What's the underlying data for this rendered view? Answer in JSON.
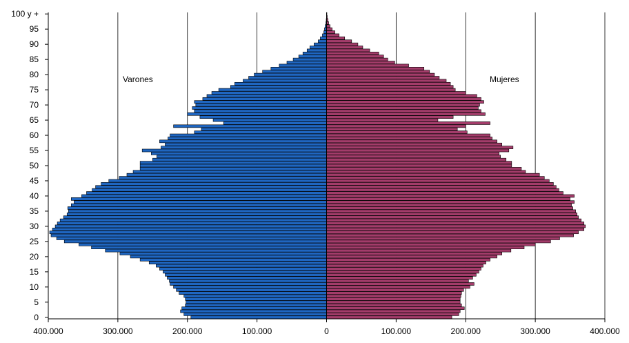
{
  "chart_data": {
    "type": "bar",
    "orientation": "horizontal",
    "layout": "population-pyramid",
    "xlim": [
      -400000,
      400000
    ],
    "x_ticks": [
      -400000,
      -300000,
      -200000,
      -100000,
      0,
      100000,
      200000,
      300000,
      400000
    ],
    "x_tick_labels": [
      "400.000",
      "300.000",
      "200.000",
      "100.000",
      "0",
      "100.000",
      "200.000",
      "300.000",
      "400.000"
    ],
    "y_categories": [
      "0",
      "1",
      "2",
      "3",
      "4",
      "5",
      "6",
      "7",
      "8",
      "9",
      "10",
      "11",
      "12",
      "13",
      "14",
      "15",
      "16",
      "17",
      "18",
      "19",
      "20",
      "21",
      "22",
      "23",
      "24",
      "25",
      "26",
      "27",
      "28",
      "29",
      "30",
      "31",
      "32",
      "33",
      "34",
      "35",
      "36",
      "37",
      "38",
      "39",
      "40",
      "41",
      "42",
      "43",
      "44",
      "45",
      "46",
      "47",
      "48",
      "49",
      "50",
      "51",
      "52",
      "53",
      "54",
      "55",
      "56",
      "57",
      "58",
      "59",
      "60",
      "61",
      "62",
      "63",
      "64",
      "65",
      "66",
      "67",
      "68",
      "69",
      "70",
      "71",
      "72",
      "73",
      "74",
      "75",
      "76",
      "77",
      "78",
      "79",
      "80",
      "81",
      "82",
      "83",
      "84",
      "85",
      "86",
      "87",
      "88",
      "89",
      "90",
      "91",
      "92",
      "93",
      "94",
      "95",
      "96",
      "97",
      "98",
      "99",
      "100 y +"
    ],
    "y_tick_labels": [
      "0",
      "5",
      "10",
      "15",
      "20",
      "25",
      "30",
      "35",
      "40",
      "45",
      "50",
      "55",
      "60",
      "65",
      "70",
      "75",
      "80",
      "85",
      "90",
      "95",
      "100 y +"
    ],
    "gridlines": "vertical",
    "series": [
      {
        "name": "Varones",
        "color": "#1f66c1",
        "values": [
          195000,
          205000,
          210000,
          208000,
          203000,
          202000,
          203000,
          205000,
          212000,
          216000,
          220000,
          225000,
          226000,
          229000,
          232000,
          235000,
          240000,
          245000,
          255000,
          268000,
          282000,
          297000,
          318000,
          338000,
          356000,
          377000,
          388000,
          396000,
          398000,
          394000,
          390000,
          387000,
          383000,
          378000,
          373000,
          371000,
          372000,
          367000,
          363000,
          367000,
          352000,
          345000,
          337000,
          332000,
          324000,
          313000,
          298000,
          287000,
          278000,
          268000,
          268000,
          268000,
          250000,
          244000,
          252000,
          265000,
          238000,
          232000,
          240000,
          228000,
          225000,
          190000,
          180000,
          220000,
          148000,
          163000,
          182000,
          200000,
          190000,
          193000,
          188000,
          190000,
          178000,
          172000,
          165000,
          155000,
          138000,
          132000,
          120000,
          112000,
          104000,
          92000,
          80000,
          68000,
          57000,
          48000,
          40000,
          34000,
          28000,
          24000,
          18000,
          12000,
          9000,
          6000,
          4000,
          3000,
          2000,
          1000,
          500,
          200,
          100
        ]
      },
      {
        "name": "Mujeres",
        "color": "#a33c6a",
        "values": [
          180000,
          190000,
          192000,
          198000,
          194000,
          192000,
          192000,
          193000,
          194000,
          197000,
          206000,
          212000,
          204000,
          210000,
          215000,
          219000,
          222000,
          225000,
          229000,
          235000,
          245000,
          252000,
          265000,
          284000,
          300000,
          322000,
          335000,
          355000,
          362000,
          370000,
          372000,
          370000,
          366000,
          362000,
          360000,
          358000,
          354000,
          352000,
          356000,
          350000,
          356000,
          340000,
          334000,
          330000,
          326000,
          320000,
          313000,
          306000,
          286000,
          280000,
          266000,
          266000,
          258000,
          250000,
          248000,
          262000,
          268000,
          252000,
          245000,
          238000,
          235000,
          202000,
          188000,
          200000,
          235000,
          160000,
          182000,
          228000,
          222000,
          218000,
          220000,
          226000,
          222000,
          216000,
          200000,
          185000,
          182000,
          178000,
          172000,
          162000,
          155000,
          148000,
          140000,
          118000,
          98000,
          88000,
          82000,
          75000,
          62000,
          52000,
          45000,
          36000,
          26000,
          18000,
          12000,
          8000,
          5000,
          3000,
          2000,
          1000,
          500
        ]
      }
    ]
  }
}
